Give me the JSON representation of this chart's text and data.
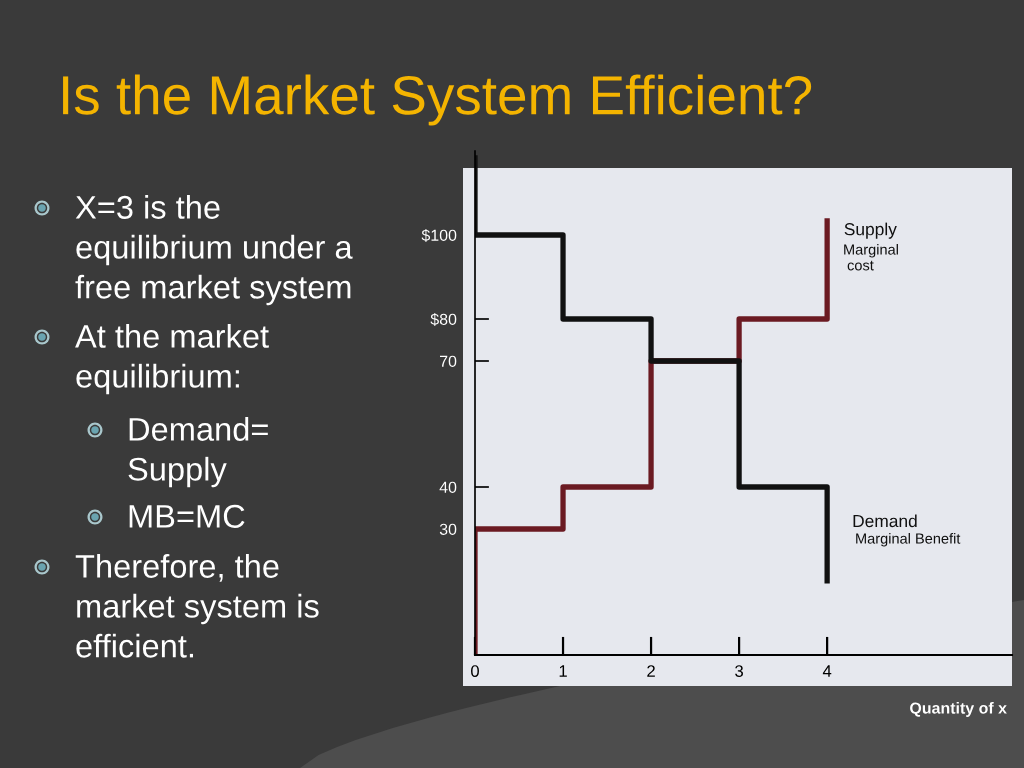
{
  "chart_data": {
    "type": "step",
    "title": "Is the Market System Efficient?",
    "xlabel": "Quantity of x",
    "series": [
      {
        "name": "Supply",
        "color": "#6b1a22",
        "x": [
          0,
          0,
          1,
          2,
          3,
          4
        ],
        "values": [
          0,
          30,
          40,
          70,
          80,
          104
        ]
      },
      {
        "name": "Demand",
        "color": "#111111",
        "x": [
          0,
          0,
          1,
          2,
          3,
          4
        ],
        "values": [
          119,
          100,
          80,
          70,
          40,
          17
        ]
      }
    ],
    "xlim": [
      0,
      6.1
    ],
    "ylim": [
      0,
      120
    ],
    "xticks": [
      0,
      1,
      2,
      3,
      4
    ],
    "yticks": [
      30,
      40,
      70,
      {
        "value": 80,
        "label": "$80"
      },
      {
        "value": 100,
        "label": "$100"
      }
    ],
    "annotations": [
      "X=3 is the\nequilibrium under a\nfree market system",
      "At the market\nequilibrium:",
      "Demand=\nSupply",
      "MB=MC",
      "Therefore, the\nmarket system is\nefficient.",
      "Marginal\n cost",
      "Marginal Benefit"
    ],
    "grid": false,
    "legend": false,
    "line_style": "solid"
  }
}
